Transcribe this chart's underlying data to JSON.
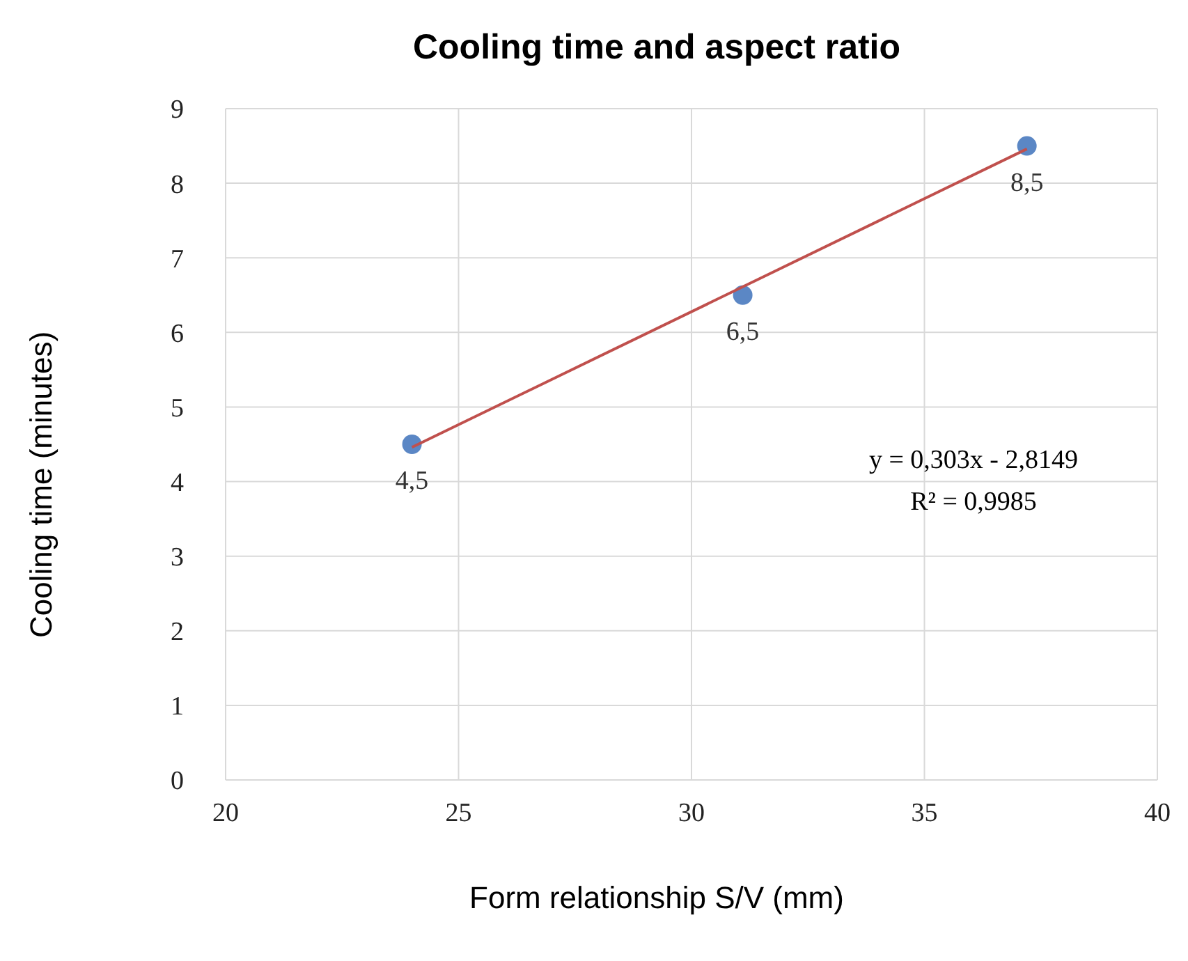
{
  "chart_data": {
    "type": "scatter",
    "title": "Cooling time and aspect ratio",
    "xlabel": "Form relationship S/V (mm)",
    "ylabel": "Cooling time (minutes)",
    "series": [
      {
        "color": "#5b87c5",
        "marker": "circle",
        "x": [
          24,
          31.1,
          37.2
        ],
        "values": [
          4.5,
          6.5,
          8.5
        ],
        "value_labels": [
          "4,5",
          "6,5",
          "8,5"
        ]
      },
      {
        "type": "line",
        "color": "#c0504d",
        "x": [
          24,
          37.2
        ],
        "values": [
          4.46,
          8.46
        ]
      }
    ],
    "xlim": [
      20,
      40
    ],
    "xticks": [
      20,
      25,
      30,
      35,
      40
    ],
    "ylim": [
      0,
      9
    ],
    "yticks": [
      0,
      1,
      2,
      3,
      4,
      5,
      6,
      7,
      8,
      9
    ],
    "grid": true,
    "line_style": "solid",
    "annotations": [
      "y = 0,303x - 2,8149",
      "R² = 0,9985"
    ]
  }
}
